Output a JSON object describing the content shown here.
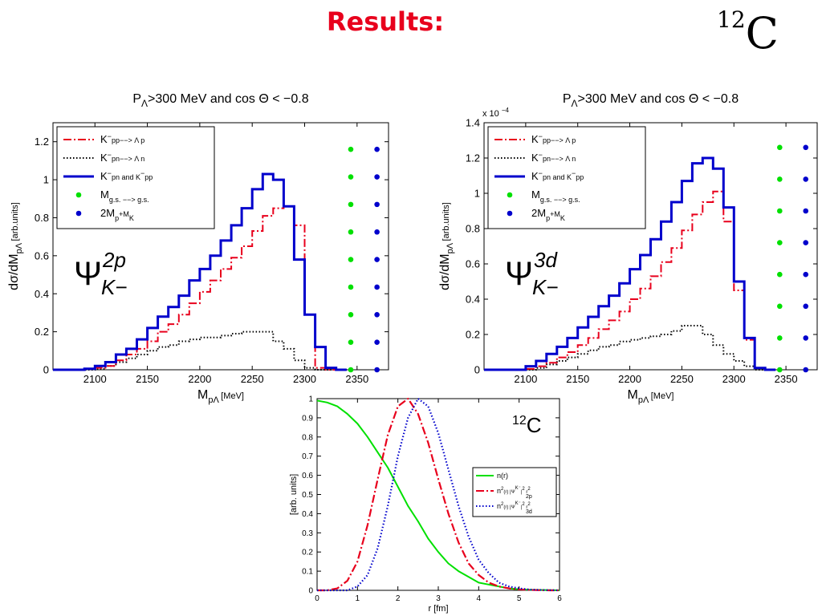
{
  "slide": {
    "title": "Results:",
    "nucleus_mass": "12",
    "nucleus_symbol": "C"
  },
  "colors": {
    "red": "#e8001c",
    "blue": "#0000cc",
    "green": "#00e000",
    "black": "#000000"
  },
  "chart_data": [
    {
      "type": "line",
      "step": true,
      "title": "PΛ>300 MeV and cos Θ < −0.8",
      "title_main": "P",
      "title_sub": "Λ",
      "title_rest": ">300 MeV and cos Θ < −0.8",
      "xlabel": "M_pΛ [MeV]",
      "ylabel": "dσ/dM_pΛ [arb.units]",
      "xlim": [
        2060,
        2380
      ],
      "ylim": [
        0,
        1.3
      ],
      "xticks": [
        2100,
        2150,
        2200,
        2250,
        2300,
        2350
      ],
      "yticks": [
        0,
        0.2,
        0.4,
        0.6,
        0.8,
        1,
        1.2
      ],
      "ytick_labels": [
        "0",
        "0.2",
        "0.4",
        "0.6",
        "0.8",
        "1",
        "1.2"
      ],
      "annotation": "Ψ_K−^2p",
      "legend_position": "top-left",
      "x": [
        2060,
        2070,
        2080,
        2090,
        2100,
        2110,
        2120,
        2130,
        2140,
        2150,
        2160,
        2170,
        2180,
        2190,
        2200,
        2210,
        2220,
        2230,
        2240,
        2250,
        2260,
        2270,
        2280,
        2290,
        2300,
        2310,
        2320,
        2330
      ],
      "series": [
        {
          "name": "K⁻pp−−> Λ p",
          "color": "#e8001c",
          "dash": "10,3,2,3",
          "values": [
            0,
            0,
            0,
            0.005,
            0.01,
            0.02,
            0.05,
            0.08,
            0.11,
            0.15,
            0.2,
            0.24,
            0.29,
            0.35,
            0.41,
            0.47,
            0.53,
            0.59,
            0.65,
            0.73,
            0.81,
            0.85,
            0.86,
            0.76,
            0.29,
            0.01,
            0,
            0
          ]
        },
        {
          "name": "K⁻pn−−> Λ n",
          "color": "#000000",
          "dash": "1.5,2.5",
          "values": [
            0,
            0,
            0,
            0,
            0.005,
            0.02,
            0.04,
            0.06,
            0.08,
            0.1,
            0.12,
            0.13,
            0.15,
            0.16,
            0.17,
            0.17,
            0.18,
            0.19,
            0.2,
            0.2,
            0.2,
            0.15,
            0.11,
            0.05,
            0.01,
            0,
            0,
            0
          ]
        },
        {
          "name": "K⁻pn and K⁻pp",
          "color": "#0000cc",
          "dash": "",
          "values": [
            0,
            0,
            0,
            0.005,
            0.02,
            0.04,
            0.08,
            0.11,
            0.16,
            0.22,
            0.28,
            0.33,
            0.39,
            0.47,
            0.53,
            0.6,
            0.68,
            0.76,
            0.85,
            0.95,
            1.03,
            1.0,
            0.86,
            0.58,
            0.29,
            0.12,
            0.01,
            0
          ]
        }
      ],
      "markers": [
        {
          "name": "M_g.s. −−> g.s.",
          "color": "#00e000",
          "x": 2344,
          "y": [
            0,
            0.145,
            0.29,
            0.435,
            0.58,
            0.725,
            0.87,
            1.015,
            1.16
          ]
        },
        {
          "name": "2M_p+M_K",
          "color": "#0000cc",
          "x": 2369,
          "y": [
            0,
            0.145,
            0.29,
            0.435,
            0.58,
            0.725,
            0.87,
            1.015,
            1.16
          ]
        }
      ]
    },
    {
      "type": "line",
      "step": true,
      "title": "PΛ>300 MeV and cos Θ < −0.8",
      "title_main": "P",
      "title_sub": "Λ",
      "title_rest": ">300 MeV and cos Θ < −0.8",
      "xlabel": "M_pΛ [MeV]",
      "ylabel": "dσ/dM_pΛ [arb.units]",
      "xlim": [
        2060,
        2380
      ],
      "ylim": [
        0,
        1.4
      ],
      "xticks": [
        2100,
        2150,
        2200,
        2250,
        2300,
        2350
      ],
      "yticks": [
        0,
        0.2,
        0.4,
        0.6,
        0.8,
        1,
        1.2,
        1.4
      ],
      "ytick_labels": [
        "0",
        "0.2",
        "0.4",
        "0.6",
        "0.8",
        "1",
        "1.2",
        "1.4"
      ],
      "scale_label": "x 10",
      "scale_exp": "−4",
      "annotation": "Ψ_K−^3d",
      "legend_position": "top-left",
      "x": [
        2060,
        2070,
        2080,
        2090,
        2100,
        2110,
        2120,
        2130,
        2140,
        2150,
        2160,
        2170,
        2180,
        2190,
        2200,
        2210,
        2220,
        2230,
        2240,
        2250,
        2260,
        2270,
        2280,
        2290,
        2300,
        2310,
        2320,
        2330
      ],
      "series": [
        {
          "name": "K⁻pp−−> Λ p",
          "color": "#e8001c",
          "dash": "10,3,2,3",
          "values": [
            0,
            0,
            0,
            0,
            0.005,
            0.02,
            0.04,
            0.07,
            0.1,
            0.14,
            0.18,
            0.23,
            0.28,
            0.33,
            0.4,
            0.46,
            0.53,
            0.61,
            0.69,
            0.79,
            0.88,
            0.95,
            1.01,
            0.84,
            0.45,
            0.17,
            0.01,
            0
          ]
        },
        {
          "name": "K⁻pn−−> Λ n",
          "color": "#000000",
          "dash": "1.5,2.5",
          "values": [
            0,
            0,
            0,
            0,
            0,
            0.01,
            0.03,
            0.05,
            0.07,
            0.09,
            0.11,
            0.13,
            0.14,
            0.16,
            0.17,
            0.18,
            0.19,
            0.2,
            0.22,
            0.25,
            0.25,
            0.2,
            0.14,
            0.09,
            0.05,
            0.02,
            0,
            0
          ]
        },
        {
          "name": "K⁻pn and K⁻pp",
          "color": "#0000cc",
          "dash": "",
          "values": [
            0,
            0,
            0,
            0,
            0.02,
            0.05,
            0.09,
            0.13,
            0.18,
            0.24,
            0.3,
            0.36,
            0.42,
            0.49,
            0.57,
            0.65,
            0.74,
            0.84,
            0.95,
            1.07,
            1.17,
            1.2,
            1.14,
            0.92,
            0.5,
            0.18,
            0.01,
            0
          ]
        }
      ],
      "markers": [
        {
          "name": "M_g.s. −−> g.s.",
          "color": "#00e000",
          "x": 2344,
          "y": [
            0,
            0.18,
            0.36,
            0.54,
            0.72,
            0.9,
            1.08,
            1.26
          ]
        },
        {
          "name": "2M_p+M_K",
          "color": "#0000cc",
          "x": 2369,
          "y": [
            0,
            0.18,
            0.36,
            0.54,
            0.72,
            0.9,
            1.08,
            1.26
          ]
        }
      ]
    },
    {
      "type": "line",
      "step": false,
      "title": "",
      "xlabel": "r [fm]",
      "ylabel": "[arb. units]",
      "xlim": [
        0,
        6
      ],
      "ylim": [
        0,
        1
      ],
      "xticks": [
        0,
        1,
        2,
        3,
        4,
        5,
        6
      ],
      "yticks": [
        0,
        0.1,
        0.2,
        0.3,
        0.4,
        0.5,
        0.6,
        0.7,
        0.8,
        0.9,
        1
      ],
      "ytick_labels": [
        "0",
        "0.1",
        "0.2",
        "0.3",
        "0.4",
        "0.5",
        "0.6",
        "0.7",
        "0.8",
        "0.9",
        "1"
      ],
      "annotation_main": "C",
      "annotation_sup": "12",
      "legend_position": "right",
      "x": [
        0,
        0.25,
        0.5,
        0.75,
        1,
        1.25,
        1.5,
        1.75,
        2,
        2.25,
        2.5,
        2.75,
        3,
        3.25,
        3.5,
        3.75,
        4,
        4.25,
        4.5,
        4.75,
        5,
        5.25,
        5.5,
        5.75,
        6
      ],
      "series": [
        {
          "name": "n(r)",
          "color": "#00e000",
          "dash": "",
          "values": [
            0.99,
            0.98,
            0.96,
            0.92,
            0.87,
            0.8,
            0.72,
            0.64,
            0.54,
            0.44,
            0.36,
            0.27,
            0.2,
            0.14,
            0.1,
            0.07,
            0.04,
            0.03,
            0.02,
            0.01,
            0.005,
            0.003,
            0.002,
            0.001,
            0
          ]
        },
        {
          "name": "n²(r) |Ψ_2p^K⁻|² r²",
          "color": "#e8001c",
          "dash": "10,3,2,3",
          "values": [
            0,
            0,
            0.01,
            0.05,
            0.15,
            0.34,
            0.58,
            0.81,
            0.96,
            1.0,
            0.92,
            0.77,
            0.58,
            0.4,
            0.25,
            0.14,
            0.08,
            0.04,
            0.02,
            0.01,
            0.005,
            0.002,
            0.001,
            0,
            0
          ]
        },
        {
          "name": "n²(r) |Ψ_3d^K⁻|² r²",
          "color": "#0000cc",
          "dash": "1.5,2.5",
          "values": [
            0,
            0,
            0,
            0,
            0.02,
            0.08,
            0.22,
            0.44,
            0.7,
            0.9,
            1.0,
            0.96,
            0.82,
            0.63,
            0.44,
            0.28,
            0.16,
            0.09,
            0.04,
            0.02,
            0.01,
            0.004,
            0.002,
            0.001,
            0
          ]
        }
      ]
    }
  ]
}
